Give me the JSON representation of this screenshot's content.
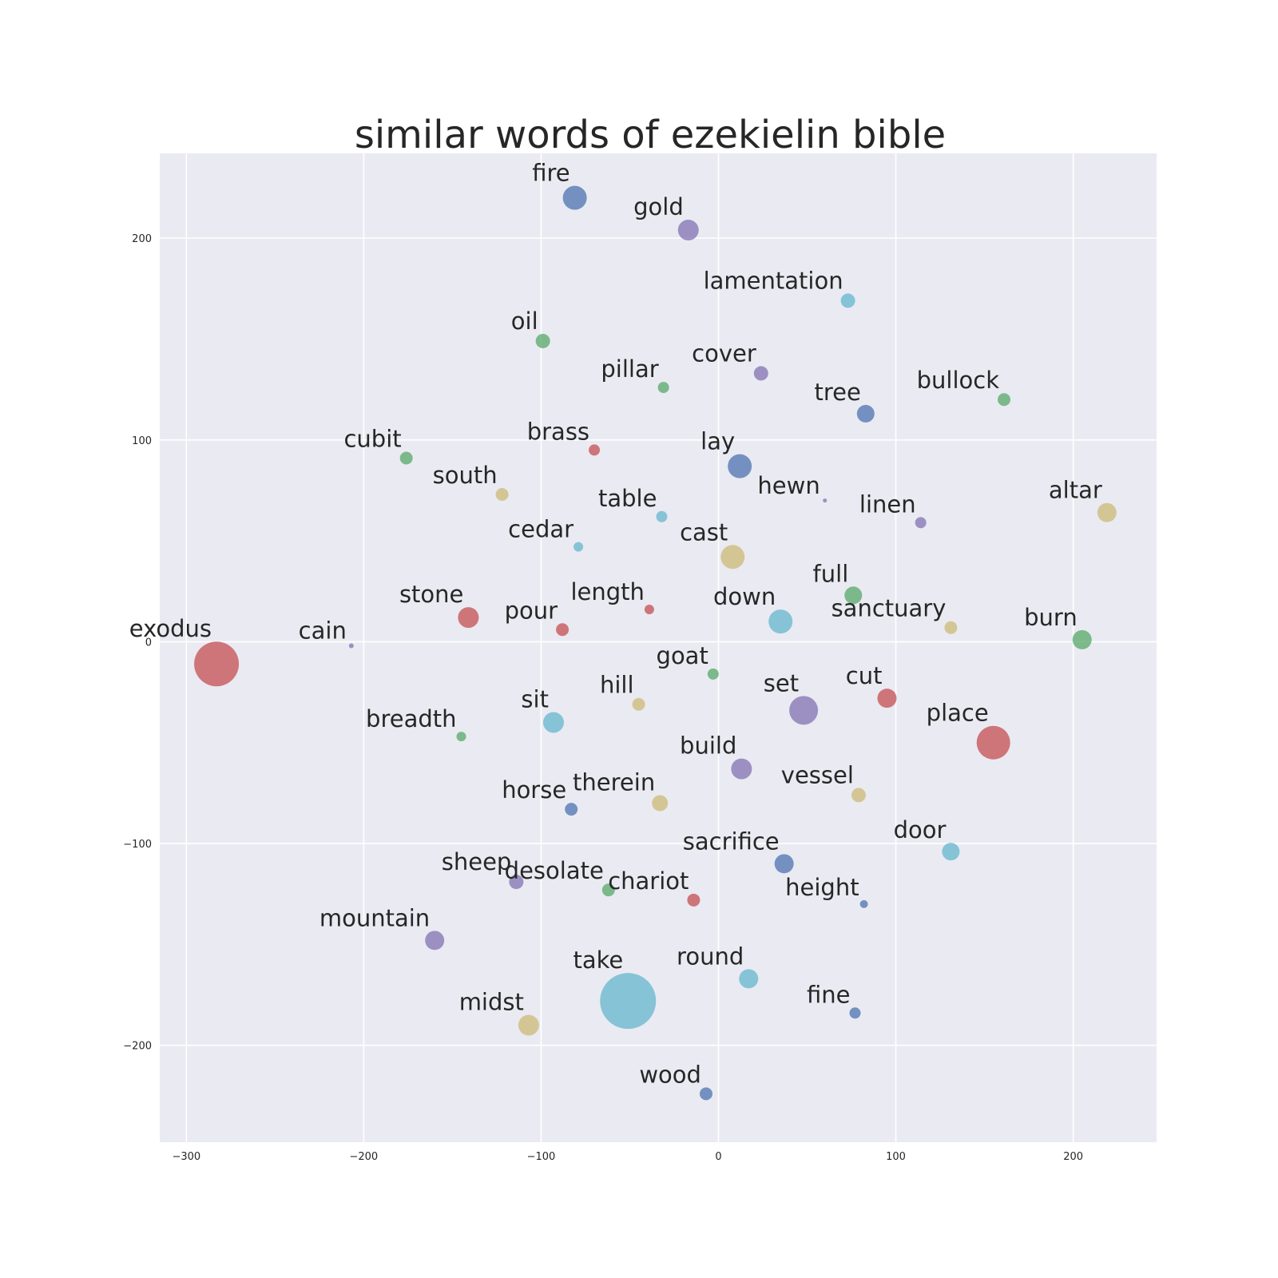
{
  "chart_data": {
    "type": "scatter",
    "title": "similar words of ezekielin bible",
    "xlabel": "",
    "ylabel": "",
    "xlim": [
      -315,
      247
    ],
    "ylim": [
      -248,
      242
    ],
    "xticks": [
      -300,
      -200,
      -100,
      0,
      100,
      200
    ],
    "yticks": [
      -200,
      -100,
      0,
      100,
      200
    ],
    "xtick_labels": [
      "−300",
      "−200",
      "−100",
      "0",
      "100",
      "200"
    ],
    "ytick_labels": [
      "−200",
      "−100",
      "0",
      "100",
      "200"
    ],
    "grid": true,
    "background": "#eaeaf2",
    "palette": {
      "blue": "#4c72b0",
      "green": "#55a868",
      "red": "#c44e52",
      "purple": "#8172b2",
      "yellow": "#ccb974",
      "cyan": "#64b5cd"
    },
    "points": [
      {
        "word": "fire",
        "x": -81,
        "y": 220,
        "size": 15,
        "color": "blue"
      },
      {
        "word": "gold",
        "x": -17,
        "y": 204,
        "size": 13,
        "color": "purple"
      },
      {
        "word": "lamentation",
        "x": 73,
        "y": 169,
        "size": 9,
        "color": "cyan"
      },
      {
        "word": "oil",
        "x": -99,
        "y": 149,
        "size": 9,
        "color": "green"
      },
      {
        "word": "cover",
        "x": 24,
        "y": 133,
        "size": 9,
        "color": "purple"
      },
      {
        "word": "pillar",
        "x": -31,
        "y": 126,
        "size": 7,
        "color": "green"
      },
      {
        "word": "bullock",
        "x": 161,
        "y": 120,
        "size": 8,
        "color": "green"
      },
      {
        "word": "tree",
        "x": 83,
        "y": 113,
        "size": 11,
        "color": "blue"
      },
      {
        "word": "brass",
        "x": -70,
        "y": 95,
        "size": 7,
        "color": "red"
      },
      {
        "word": "cubit",
        "x": -176,
        "y": 91,
        "size": 8,
        "color": "green"
      },
      {
        "word": "lay",
        "x": 12,
        "y": 87,
        "size": 15,
        "color": "blue"
      },
      {
        "word": "south",
        "x": -122,
        "y": 73,
        "size": 8,
        "color": "yellow"
      },
      {
        "word": "hewn",
        "x": 60,
        "y": 70,
        "size": 2.5,
        "color": "purple"
      },
      {
        "word": "altar",
        "x": 219,
        "y": 64,
        "size": 12,
        "color": "yellow"
      },
      {
        "word": "table",
        "x": -32,
        "y": 62,
        "size": 7,
        "color": "cyan"
      },
      {
        "word": "linen",
        "x": 114,
        "y": 59,
        "size": 7,
        "color": "purple"
      },
      {
        "word": "cedar",
        "x": -79,
        "y": 47,
        "size": 6,
        "color": "cyan"
      },
      {
        "word": "cast",
        "x": 8,
        "y": 42,
        "size": 15,
        "color": "yellow"
      },
      {
        "word": "full",
        "x": 76,
        "y": 23,
        "size": 11,
        "color": "green"
      },
      {
        "word": "length",
        "x": -39,
        "y": 16,
        "size": 6,
        "color": "red"
      },
      {
        "word": "stone",
        "x": -141,
        "y": 12,
        "size": 13,
        "color": "red"
      },
      {
        "word": "down",
        "x": 35,
        "y": 10,
        "size": 15,
        "color": "cyan"
      },
      {
        "word": "sanctuary",
        "x": 131,
        "y": 7,
        "size": 8,
        "color": "yellow"
      },
      {
        "word": "pour",
        "x": -88,
        "y": 6,
        "size": 8,
        "color": "red"
      },
      {
        "word": "burn",
        "x": 205,
        "y": 1,
        "size": 12,
        "color": "green"
      },
      {
        "word": "cain",
        "x": -207,
        "y": -2,
        "size": 3,
        "color": "purple"
      },
      {
        "word": "exodus",
        "x": -283,
        "y": -11,
        "size": 28,
        "color": "red"
      },
      {
        "word": "goat",
        "x": -3,
        "y": -16,
        "size": 7,
        "color": "green"
      },
      {
        "word": "cut",
        "x": 95,
        "y": -28,
        "size": 12,
        "color": "red"
      },
      {
        "word": "hill",
        "x": -45,
        "y": -31,
        "size": 8,
        "color": "yellow"
      },
      {
        "word": "set",
        "x": 48,
        "y": -34,
        "size": 18,
        "color": "purple"
      },
      {
        "word": "sit",
        "x": -93,
        "y": -40,
        "size": 13,
        "color": "cyan"
      },
      {
        "word": "breadth",
        "x": -145,
        "y": -47,
        "size": 6,
        "color": "green"
      },
      {
        "word": "place",
        "x": 155,
        "y": -50,
        "size": 21,
        "color": "red"
      },
      {
        "word": "build",
        "x": 13,
        "y": -63,
        "size": 13,
        "color": "purple"
      },
      {
        "word": "vessel",
        "x": 79,
        "y": -76,
        "size": 9,
        "color": "yellow"
      },
      {
        "word": "therein",
        "x": -33,
        "y": -80,
        "size": 10,
        "color": "yellow"
      },
      {
        "word": "horse",
        "x": -83,
        "y": -83,
        "size": 8,
        "color": "blue"
      },
      {
        "word": "door",
        "x": 131,
        "y": -104,
        "size": 11,
        "color": "cyan"
      },
      {
        "word": "sacrifice",
        "x": 37,
        "y": -110,
        "size": 12,
        "color": "blue"
      },
      {
        "word": "sheep",
        "x": -114,
        "y": -119,
        "size": 9,
        "color": "purple"
      },
      {
        "word": "desolate",
        "x": -62,
        "y": -123,
        "size": 8,
        "color": "green"
      },
      {
        "word": "chariot",
        "x": -14,
        "y": -128,
        "size": 8,
        "color": "red"
      },
      {
        "word": "height",
        "x": 82,
        "y": -130,
        "size": 5,
        "color": "blue"
      },
      {
        "word": "mountain",
        "x": -160,
        "y": -148,
        "size": 12,
        "color": "purple"
      },
      {
        "word": "round",
        "x": 17,
        "y": -167,
        "size": 12,
        "color": "cyan"
      },
      {
        "word": "take",
        "x": -51,
        "y": -178,
        "size": 35,
        "color": "cyan"
      },
      {
        "word": "fine",
        "x": 77,
        "y": -184,
        "size": 7,
        "color": "blue"
      },
      {
        "word": "midst",
        "x": -107,
        "y": -190,
        "size": 13,
        "color": "yellow"
      },
      {
        "word": "wood",
        "x": -7,
        "y": -224,
        "size": 8,
        "color": "blue"
      }
    ]
  }
}
